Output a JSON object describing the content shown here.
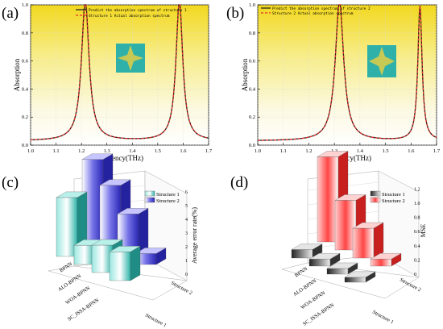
{
  "panels": [
    {
      "id": "a",
      "label": "(a)",
      "chart_data": {
        "type": "line",
        "xlabel": "Frequency(THz)",
        "ylabel": "Absorption",
        "xlim": [
          1.0,
          1.7
        ],
        "ylim": [
          0.0,
          1.0
        ],
        "xticks": [
          "1.0",
          "1.1",
          "1.2",
          "1.3",
          "1.4",
          "1.5",
          "1.6",
          "1.7"
        ],
        "yticks": [
          "0.0",
          "0.2",
          "0.4",
          "0.6",
          "0.8",
          "1.0"
        ],
        "legend_position": "top-center",
        "peaks": [
          [
            1.215,
            1.0,
            0.018
          ],
          [
            1.585,
            1.0,
            0.016
          ]
        ],
        "series": [
          {
            "name": "Predict the absorption spectrum of structure 1",
            "color": "#1a1a1a",
            "style": "solid"
          },
          {
            "name": "Structure 1 Actual absorption spectrum",
            "color": "#e8322a",
            "style": "dashed"
          }
        ],
        "x": [
          1.0,
          1.05,
          1.1,
          1.15,
          1.18,
          1.2,
          1.21,
          1.215,
          1.22,
          1.23,
          1.25,
          1.3,
          1.35,
          1.4,
          1.45,
          1.5,
          1.53,
          1.56,
          1.575,
          1.585,
          1.595,
          1.61,
          1.64,
          1.67,
          1.7
        ],
        "y": [
          0.05,
          0.07,
          0.11,
          0.24,
          0.52,
          0.87,
          0.98,
          1.0,
          0.98,
          0.88,
          0.57,
          0.21,
          0.12,
          0.11,
          0.12,
          0.17,
          0.25,
          0.51,
          0.82,
          1.0,
          0.84,
          0.45,
          0.16,
          0.08,
          0.05
        ]
      }
    },
    {
      "id": "b",
      "label": "(b)",
      "chart_data": {
        "type": "line",
        "xlabel": "Frequency(THz)",
        "ylabel": "Absorption",
        "xlim": [
          1.0,
          1.7
        ],
        "ylim": [
          0.0,
          1.0
        ],
        "xticks": [
          "1.0",
          "1.1",
          "1.2",
          "1.3",
          "1.4",
          "1.5",
          "1.6",
          "1.7"
        ],
        "yticks": [
          "0.0",
          "0.2",
          "0.4",
          "0.6",
          "0.8",
          "1.0"
        ],
        "legend_position": "top-center",
        "peaks": [
          [
            1.32,
            0.99,
            0.02
          ],
          [
            1.635,
            0.96,
            0.01
          ]
        ],
        "series": [
          {
            "name": "Predict the absorption spectrum of structure 2",
            "color": "#1a1a1a",
            "style": "solid"
          },
          {
            "name": "Structure 2 Actual absorption spectrum",
            "color": "#e8322a",
            "style": "dashed"
          }
        ],
        "x": [
          1.0,
          1.1,
          1.2,
          1.25,
          1.28,
          1.3,
          1.31,
          1.32,
          1.33,
          1.35,
          1.38,
          1.45,
          1.52,
          1.58,
          1.6,
          1.62,
          1.63,
          1.635,
          1.64,
          1.65,
          1.67,
          1.7
        ],
        "y": [
          0.02,
          0.03,
          0.08,
          0.15,
          0.34,
          0.67,
          0.9,
          0.99,
          0.9,
          0.53,
          0.22,
          0.08,
          0.06,
          0.12,
          0.18,
          0.45,
          0.78,
          0.96,
          0.81,
          0.31,
          0.1,
          0.05
        ]
      }
    },
    {
      "id": "c",
      "label": "(c)",
      "chart_data": {
        "type": "bar",
        "subtype": "3d-grouped",
        "zlabel": "Average error rate(%)",
        "zticks": [
          "0",
          "1",
          "2",
          "3",
          "4",
          "5",
          "6"
        ],
        "zlim": [
          0,
          6
        ],
        "categories": [
          "BPNN",
          "ALO-BPNN",
          "WOA-BPNN",
          "SC_ISSA-BPNN"
        ],
        "depth_categories": [
          "Structure 1",
          "Structure 2"
        ],
        "legend_position": "top-right",
        "series": [
          {
            "name": "Structure 1",
            "color": "#2bb3a8",
            "values": [
              4.3,
              1.4,
              2.0,
              2.1
            ]
          },
          {
            "name": "Structure 2",
            "color": "#3a36c8",
            "values": [
              5.9,
              4.6,
              3.1,
              0.8
            ]
          }
        ]
      }
    },
    {
      "id": "d",
      "label": "(d)",
      "chart_data": {
        "type": "bar",
        "subtype": "3d-grouped",
        "zlabel": "MSE",
        "zticks": [
          "0",
          "0.2",
          "0.4",
          "0.6",
          "0.8",
          "1.0",
          "1.2"
        ],
        "zlim": [
          0,
          1.2
        ],
        "categories": [
          "BPNN",
          "ALO-BPNN",
          "WOA-BPNN",
          "SC_ISSA-BPNN"
        ],
        "depth_categories": [
          "Structure 1",
          "Structure 2"
        ],
        "legend_position": "top-right",
        "series": [
          {
            "name": "Structure 1",
            "color": "#3a3a3a",
            "values": [
              0.12,
              0.1,
              0.08,
              0.07
            ]
          },
          {
            "name": "Structure 2",
            "color": "#ee3333",
            "values": [
              1.2,
              0.7,
              0.42,
              0.1
            ]
          }
        ]
      }
    }
  ]
}
